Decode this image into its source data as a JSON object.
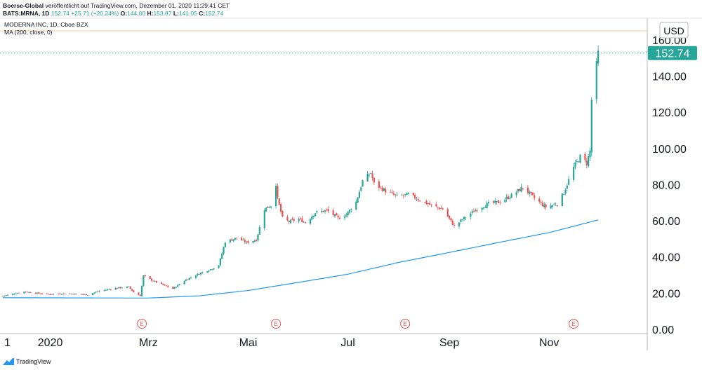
{
  "header": {
    "publisher": "Boerse-Global",
    "published_text": "veröffentlicht auf TradingView.com, Dezember 01, 2020 11:29:41 CET",
    "symbol": "BATS:MRNA, 1D",
    "last": "152.74",
    "change": "+25.71 (+20.24%)",
    "o_label": "O:",
    "o_value": "144.00",
    "h_label": "H:",
    "h_value": "153.87",
    "l_label": "L:",
    "l_value": "141.05",
    "c_label": "C:",
    "c_value": "152.74"
  },
  "legend": {
    "title": "MODERNA INC, 1D, Cboe BZX",
    "indicator": "MA (200, close, 0)"
  },
  "footer": {
    "brand": "TradingView"
  },
  "colors": {
    "up": "#26a69a",
    "down": "#ef5350",
    "ma": "#2196f3",
    "price_badge": "#26a69a",
    "earnings": "#ef5350"
  },
  "chart_data": {
    "type": "candlestick",
    "currency": "USD",
    "ylim": [
      0,
      172
    ],
    "y_ticks": [
      {
        "v": 0,
        "label": "0.00"
      },
      {
        "v": 20,
        "label": "20.00"
      },
      {
        "v": 40,
        "label": "40.00"
      },
      {
        "v": 60,
        "label": "60.00"
      },
      {
        "v": 80,
        "label": "80.00"
      },
      {
        "v": 100,
        "label": "100.00"
      },
      {
        "v": 120,
        "label": "120.00"
      },
      {
        "v": 140,
        "label": "140.00"
      },
      {
        "v": 160,
        "label": "160.00"
      }
    ],
    "last_price": {
      "value": 152.74,
      "label": "152.74"
    },
    "x_range": [
      "2019-12-03",
      "2020-12-31"
    ],
    "x_ticks": [
      {
        "date": "2019-12-02",
        "label": "1"
      },
      {
        "date": "2020-01-01",
        "label": "2020"
      },
      {
        "date": "2020-03-01",
        "label": "Mrz"
      },
      {
        "date": "2020-05-01",
        "label": "Mai"
      },
      {
        "date": "2020-07-01",
        "label": "Jul"
      },
      {
        "date": "2020-09-01",
        "label": "Sep"
      },
      {
        "date": "2020-11-01",
        "label": "Nov"
      }
    ],
    "earnings": [
      {
        "date": "2020-02-26",
        "label": "E"
      },
      {
        "date": "2020-05-18",
        "label": "E"
      },
      {
        "date": "2020-08-05",
        "label": "E"
      },
      {
        "date": "2020-11-16",
        "label": "E"
      }
    ],
    "price_path": [
      [
        "2019-12-03",
        18.5
      ],
      [
        "2019-12-16",
        20.8
      ],
      [
        "2019-12-31",
        19.4
      ],
      [
        "2020-01-10",
        19.8
      ],
      [
        "2020-01-24",
        19.2
      ],
      [
        "2020-01-31",
        21.2
      ],
      [
        "2020-02-10",
        22.8
      ],
      [
        "2020-02-18",
        23.5
      ],
      [
        "2020-02-21",
        20.5
      ],
      [
        "2020-02-25",
        18.6
      ],
      [
        "2020-02-27",
        29.5
      ],
      [
        "2020-03-03",
        27.2
      ],
      [
        "2020-03-10",
        24.5
      ],
      [
        "2020-03-16",
        22.5
      ],
      [
        "2020-03-24",
        27.5
      ],
      [
        "2020-04-01",
        30.8
      ],
      [
        "2020-04-08",
        33.2
      ],
      [
        "2020-04-13",
        35.5
      ],
      [
        "2020-04-17",
        48.5
      ],
      [
        "2020-04-24",
        50.5
      ],
      [
        "2020-04-30",
        48.0
      ],
      [
        "2020-05-06",
        49.5
      ],
      [
        "2020-05-11",
        66.5
      ],
      [
        "2020-05-15",
        68.5
      ],
      [
        "2020-05-18",
        80.5
      ],
      [
        "2020-05-19",
        72.0
      ],
      [
        "2020-05-22",
        61.5
      ],
      [
        "2020-05-26",
        59.5
      ],
      [
        "2020-06-01",
        61.0
      ],
      [
        "2020-06-05",
        59.0
      ],
      [
        "2020-06-11",
        64.5
      ],
      [
        "2020-06-18",
        65.8
      ],
      [
        "2020-06-25",
        61.5
      ],
      [
        "2020-06-30",
        63.5
      ],
      [
        "2020-07-06",
        70.5
      ],
      [
        "2020-07-10",
        82.0
      ],
      [
        "2020-07-15",
        86.5
      ],
      [
        "2020-07-17",
        80.5
      ],
      [
        "2020-07-24",
        76.5
      ],
      [
        "2020-07-31",
        73.5
      ],
      [
        "2020-08-07",
        74.5
      ],
      [
        "2020-08-14",
        71.5
      ],
      [
        "2020-08-21",
        68.5
      ],
      [
        "2020-08-28",
        66.5
      ],
      [
        "2020-09-04",
        57.0
      ],
      [
        "2020-09-10",
        61.5
      ],
      [
        "2020-09-18",
        66.5
      ],
      [
        "2020-09-25",
        69.5
      ],
      [
        "2020-10-02",
        70.5
      ],
      [
        "2020-10-09",
        74.0
      ],
      [
        "2020-10-16",
        78.5
      ],
      [
        "2020-10-23",
        72.5
      ],
      [
        "2020-10-30",
        67.5
      ],
      [
        "2020-11-06",
        69.5
      ],
      [
        "2020-11-10",
        75.5
      ],
      [
        "2020-11-16",
        89.5
      ],
      [
        "2020-11-20",
        95.5
      ],
      [
        "2020-11-24",
        92.0
      ],
      [
        "2020-11-26",
        98.5
      ],
      [
        "2020-11-27",
        127.0
      ],
      [
        "2020-12-01",
        152.74
      ]
    ],
    "ma_path": [
      [
        "2019-12-03",
        17.5
      ],
      [
        "2020-03-01",
        17.3
      ],
      [
        "2020-04-01",
        18.5
      ],
      [
        "2020-05-01",
        21.5
      ],
      [
        "2020-06-01",
        26.0
      ],
      [
        "2020-07-01",
        30.5
      ],
      [
        "2020-08-01",
        37.0
      ],
      [
        "2020-09-01",
        42.5
      ],
      [
        "2020-10-01",
        48.0
      ],
      [
        "2020-11-01",
        53.5
      ],
      [
        "2020-12-01",
        60.5
      ]
    ]
  }
}
